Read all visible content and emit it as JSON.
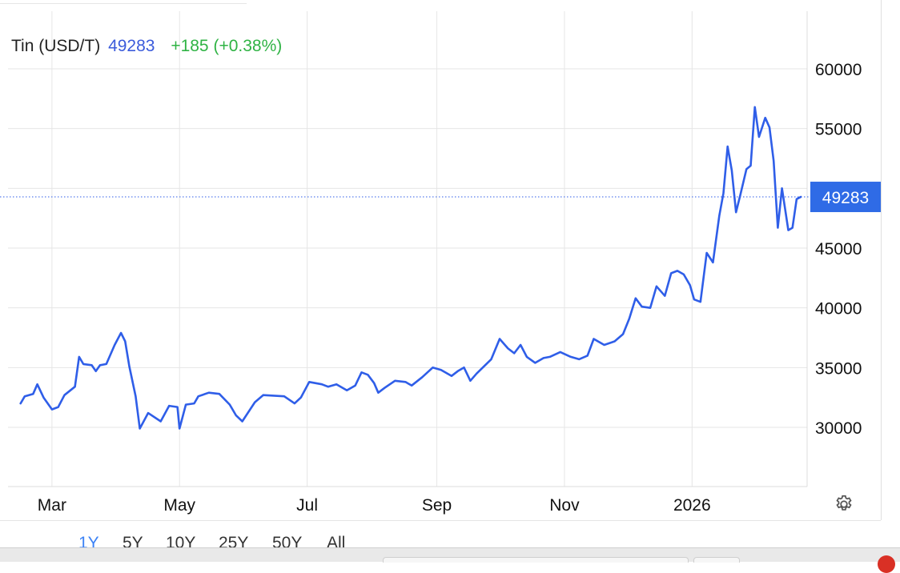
{
  "legend": {
    "name": "Tin (USD/T)",
    "last": "49283",
    "change": "+185 (+0.38%)"
  },
  "colors": {
    "line": "#2f5ee8",
    "last_label_bg": "#2f6be6",
    "change_positive": "#2fb344",
    "grid": "#e6e6e6"
  },
  "ranges": [
    "1Y",
    "5Y",
    "10Y",
    "25Y",
    "50Y",
    "All"
  ],
  "active_range": "1Y",
  "settings_icon": "gear-icon",
  "chart_data": {
    "type": "line",
    "title": "",
    "xlabel": "",
    "ylabel": "",
    "ylim": [
      25000,
      65000
    ],
    "yticks": [
      30000,
      35000,
      40000,
      45000,
      50000,
      55000,
      60000
    ],
    "ytick_labels": [
      "30000",
      "35000",
      "40000",
      "45000",
      "50000",
      "55000",
      "60000"
    ],
    "xlim": [
      "2025-02-08",
      "2026-02-25"
    ],
    "xticks": [
      {
        "date": "2025-03-01",
        "label": "Mar"
      },
      {
        "date": "2025-05-01",
        "label": "May"
      },
      {
        "date": "2025-07-01",
        "label": "Jul"
      },
      {
        "date": "2025-09-01",
        "label": "Sep"
      },
      {
        "date": "2025-11-01",
        "label": "Nov"
      },
      {
        "date": "2026-01-01",
        "label": "2026"
      }
    ],
    "grid": true,
    "last_value_line": 49283,
    "last_value_label": "49283",
    "series": [
      {
        "values": [
          [
            "2025-02-14",
            32000
          ],
          [
            "2025-02-16",
            32600
          ],
          [
            "2025-02-20",
            32800
          ],
          [
            "2025-02-22",
            33600
          ],
          [
            "2025-02-25",
            32500
          ],
          [
            "2025-03-01",
            31500
          ],
          [
            "2025-03-04",
            31700
          ],
          [
            "2025-03-07",
            32700
          ],
          [
            "2025-03-12",
            33400
          ],
          [
            "2025-03-14",
            35900
          ],
          [
            "2025-03-16",
            35300
          ],
          [
            "2025-03-20",
            35200
          ],
          [
            "2025-03-22",
            34700
          ],
          [
            "2025-03-24",
            35200
          ],
          [
            "2025-03-27",
            35300
          ],
          [
            "2025-03-31",
            36900
          ],
          [
            "2025-04-03",
            37900
          ],
          [
            "2025-04-05",
            37200
          ],
          [
            "2025-04-07",
            35100
          ],
          [
            "2025-04-10",
            32600
          ],
          [
            "2025-04-12",
            29900
          ],
          [
            "2025-04-16",
            31200
          ],
          [
            "2025-04-22",
            30500
          ],
          [
            "2025-04-26",
            31800
          ],
          [
            "2025-04-30",
            31700
          ],
          [
            "2025-05-01",
            29900
          ],
          [
            "2025-05-04",
            31900
          ],
          [
            "2025-05-08",
            32000
          ],
          [
            "2025-05-10",
            32600
          ],
          [
            "2025-05-15",
            32900
          ],
          [
            "2025-05-20",
            32800
          ],
          [
            "2025-05-25",
            31900
          ],
          [
            "2025-05-28",
            31000
          ],
          [
            "2025-05-31",
            30500
          ],
          [
            "2025-06-06",
            32100
          ],
          [
            "2025-06-10",
            32700
          ],
          [
            "2025-06-20",
            32600
          ],
          [
            "2025-06-25",
            32000
          ],
          [
            "2025-06-28",
            32500
          ],
          [
            "2025-07-02",
            33800
          ],
          [
            "2025-07-08",
            33600
          ],
          [
            "2025-07-11",
            33400
          ],
          [
            "2025-07-15",
            33600
          ],
          [
            "2025-07-20",
            33100
          ],
          [
            "2025-07-24",
            33500
          ],
          [
            "2025-07-27",
            34600
          ],
          [
            "2025-07-30",
            34400
          ],
          [
            "2025-08-02",
            33700
          ],
          [
            "2025-08-04",
            32900
          ],
          [
            "2025-08-07",
            33300
          ],
          [
            "2025-08-12",
            33900
          ],
          [
            "2025-08-17",
            33800
          ],
          [
            "2025-08-20",
            33500
          ],
          [
            "2025-08-25",
            34200
          ],
          [
            "2025-08-30",
            35000
          ],
          [
            "2025-09-03",
            34800
          ],
          [
            "2025-09-08",
            34300
          ],
          [
            "2025-09-11",
            34700
          ],
          [
            "2025-09-14",
            35000
          ],
          [
            "2025-09-17",
            33900
          ],
          [
            "2025-09-20",
            34500
          ],
          [
            "2025-09-27",
            35700
          ],
          [
            "2025-10-01",
            37400
          ],
          [
            "2025-10-05",
            36600
          ],
          [
            "2025-10-08",
            36200
          ],
          [
            "2025-10-11",
            36900
          ],
          [
            "2025-10-14",
            35900
          ],
          [
            "2025-10-18",
            35400
          ],
          [
            "2025-10-22",
            35800
          ],
          [
            "2025-10-25",
            35900
          ],
          [
            "2025-10-30",
            36300
          ],
          [
            "2025-11-04",
            35900
          ],
          [
            "2025-11-08",
            35700
          ],
          [
            "2025-11-12",
            36000
          ],
          [
            "2025-11-15",
            37400
          ],
          [
            "2025-11-20",
            36900
          ],
          [
            "2025-11-25",
            37200
          ],
          [
            "2025-11-29",
            37800
          ],
          [
            "2025-12-02",
            39100
          ],
          [
            "2025-12-05",
            40800
          ],
          [
            "2025-12-08",
            40100
          ],
          [
            "2025-12-12",
            40000
          ],
          [
            "2025-12-15",
            41800
          ],
          [
            "2025-12-19",
            41000
          ],
          [
            "2025-12-22",
            42900
          ],
          [
            "2025-12-25",
            43100
          ],
          [
            "2025-12-28",
            42800
          ],
          [
            "2025-12-31",
            41900
          ],
          [
            "2026-01-02",
            40700
          ],
          [
            "2026-01-05",
            40500
          ],
          [
            "2026-01-08",
            44600
          ],
          [
            "2026-01-11",
            43800
          ],
          [
            "2026-01-14",
            47700
          ],
          [
            "2026-01-16",
            49600
          ],
          [
            "2026-01-18",
            53500
          ],
          [
            "2026-01-20",
            51500
          ],
          [
            "2026-01-22",
            48000
          ],
          [
            "2026-01-24",
            49400
          ],
          [
            "2026-01-27",
            51600
          ],
          [
            "2026-01-29",
            51900
          ],
          [
            "2026-01-31",
            56800
          ],
          [
            "2026-02-02",
            54300
          ],
          [
            "2026-02-05",
            55900
          ],
          [
            "2026-02-07",
            55100
          ],
          [
            "2026-02-09",
            52300
          ],
          [
            "2026-02-11",
            46700
          ],
          [
            "2026-02-13",
            50000
          ],
          [
            "2026-02-16",
            46500
          ],
          [
            "2026-02-18",
            46700
          ],
          [
            "2026-02-20",
            49100
          ],
          [
            "2026-02-22",
            49283
          ]
        ]
      }
    ]
  }
}
